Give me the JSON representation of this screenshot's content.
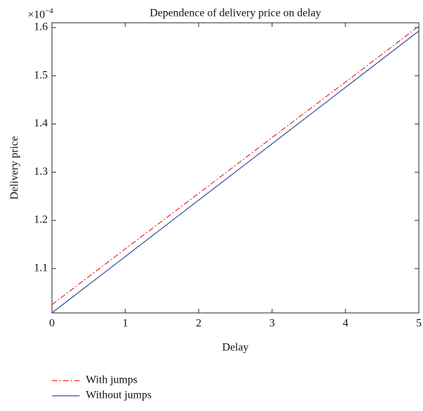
{
  "chart_data": {
    "type": "line",
    "title": "Dependence of delivery price on delay",
    "xlabel": "Delay",
    "ylabel": "Delivery price",
    "y_multiplier": {
      "base": "×10",
      "exponent": "−4"
    },
    "x": [
      0,
      1,
      2,
      3,
      4,
      5
    ],
    "series": [
      {
        "name": "With jumps",
        "color": "#e8262a",
        "dash": "dashdot",
        "values": [
          1.025,
          1.141,
          1.256,
          1.372,
          1.487,
          1.603
        ]
      },
      {
        "name": "Without jumps",
        "color": "#2e4f9c",
        "dash": "solid",
        "values": [
          1.008,
          1.125,
          1.242,
          1.359,
          1.476,
          1.593
        ]
      }
    ],
    "xlim": [
      0,
      5
    ],
    "xticks": [
      0,
      1,
      2,
      3,
      4,
      5
    ],
    "ylim": [
      1.008,
      1.61
    ],
    "yticks": [
      1.1,
      1.2,
      1.3,
      1.4,
      1.5,
      1.6
    ],
    "grid": false,
    "legend": "below"
  }
}
